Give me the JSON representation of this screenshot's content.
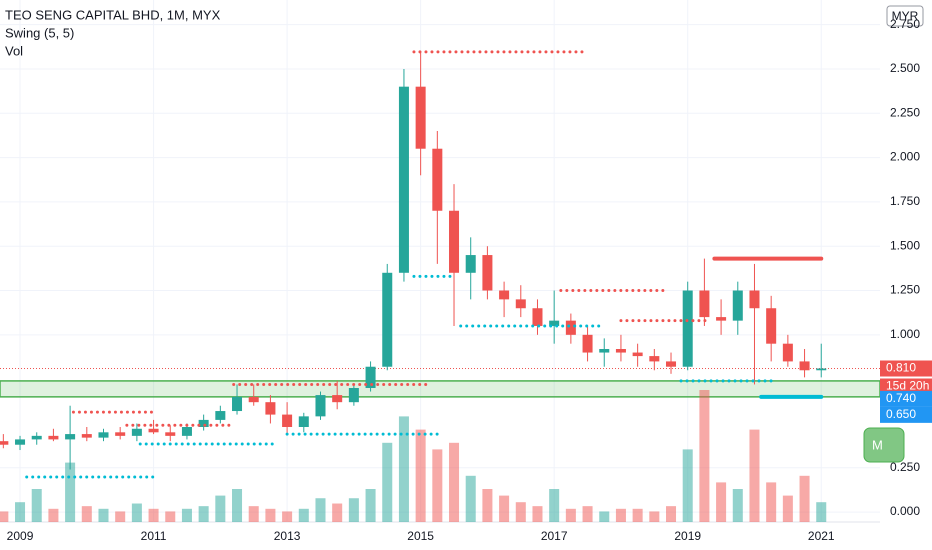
{
  "header": {
    "symbol": "TEO SENG CAPITAL BHD, 1M, MYX",
    "indicator": "Swing (5, 5)",
    "volume": "Vol"
  },
  "currency": "MYR",
  "side_button": "M",
  "chart_data": {
    "type": "candlestick",
    "up_color": "#26a69a",
    "down_color": "#ef5350",
    "xlim": [
      2008.7,
      2021.88
    ],
    "xticks": [
      2009,
      2011,
      2013,
      2015,
      2017,
      2019,
      2021
    ],
    "ylim": [
      -0.056,
      2.889
    ],
    "yticks": [
      {
        "value": 0,
        "label": "0.000"
      },
      {
        "value": 0.25,
        "label": "0.250"
      },
      {
        "value": 1,
        "label": "1.000"
      },
      {
        "value": 1.25,
        "label": "1.250"
      },
      {
        "value": 1.5,
        "label": "1.500"
      },
      {
        "value": 1.75,
        "label": "1.750"
      },
      {
        "value": 2,
        "label": "2.000"
      },
      {
        "value": 2.25,
        "label": "2.250"
      },
      {
        "value": 2.5,
        "label": "2.500"
      },
      {
        "value": 2.75,
        "label": "2.750"
      }
    ],
    "x": [
      2008.75,
      2009,
      2009.25,
      2009.5,
      2009.75,
      2010,
      2010.25,
      2010.5,
      2010.75,
      2011,
      2011.25,
      2011.5,
      2011.75,
      2012,
      2012.25,
      2012.5,
      2012.75,
      2013,
      2013.25,
      2013.5,
      2013.75,
      2014,
      2014.25,
      2014.5,
      2014.75,
      2015,
      2015.25,
      2015.5,
      2015.75,
      2016,
      2016.25,
      2016.5,
      2016.75,
      2017,
      2017.25,
      2017.5,
      2017.75,
      2018,
      2018.25,
      2018.5,
      2018.75,
      2019,
      2019.25,
      2019.5,
      2019.75,
      2020,
      2020.25,
      2020.5,
      2020.75,
      2021
    ],
    "open": [
      0.4,
      0.38,
      0.41,
      0.43,
      0.41,
      0.44,
      0.42,
      0.45,
      0.43,
      0.47,
      0.45,
      0.43,
      0.48,
      0.52,
      0.57,
      0.65,
      0.62,
      0.55,
      0.48,
      0.54,
      0.66,
      0.62,
      0.7,
      0.82,
      1.35,
      2.4,
      2.05,
      1.7,
      1.35,
      1.45,
      1.25,
      1.2,
      1.15,
      1.05,
      1.08,
      1.0,
      0.9,
      0.92,
      0.9,
      0.88,
      0.85,
      0.82,
      1.25,
      1.1,
      1.08,
      1.25,
      1.15,
      0.95,
      0.85,
      0.8
    ],
    "high": [
      0.44,
      0.43,
      0.45,
      0.47,
      0.6,
      0.48,
      0.47,
      0.48,
      0.5,
      0.52,
      0.49,
      0.5,
      0.55,
      0.6,
      0.72,
      0.72,
      0.66,
      0.62,
      0.56,
      0.68,
      0.74,
      0.72,
      0.85,
      1.4,
      2.5,
      2.6,
      2.15,
      1.85,
      1.55,
      1.5,
      1.3,
      1.28,
      1.2,
      1.25,
      1.12,
      1.05,
      0.98,
      1.0,
      0.95,
      0.92,
      0.9,
      1.3,
      1.43,
      1.2,
      1.3,
      1.4,
      1.22,
      1.0,
      0.92,
      0.95
    ],
    "low": [
      0.36,
      0.35,
      0.38,
      0.4,
      0.24,
      0.4,
      0.4,
      0.41,
      0.4,
      0.44,
      0.4,
      0.41,
      0.46,
      0.5,
      0.55,
      0.6,
      0.5,
      0.44,
      0.45,
      0.52,
      0.58,
      0.6,
      0.68,
      0.8,
      1.3,
      1.9,
      1.4,
      1.05,
      1.2,
      1.2,
      1.1,
      1.1,
      1.0,
      0.95,
      0.95,
      0.85,
      0.82,
      0.85,
      0.82,
      0.8,
      0.78,
      0.8,
      1.05,
      1.0,
      1.0,
      0.72,
      0.85,
      0.82,
      0.76,
      0.76
    ],
    "close": [
      0.38,
      0.41,
      0.43,
      0.41,
      0.44,
      0.42,
      0.45,
      0.43,
      0.47,
      0.45,
      0.43,
      0.48,
      0.52,
      0.57,
      0.65,
      0.62,
      0.55,
      0.48,
      0.54,
      0.66,
      0.62,
      0.7,
      0.82,
      1.35,
      2.4,
      2.05,
      1.7,
      1.35,
      1.45,
      1.25,
      1.2,
      1.15,
      1.05,
      1.08,
      1.0,
      0.9,
      0.92,
      0.9,
      0.88,
      0.85,
      0.82,
      1.25,
      1.1,
      1.08,
      1.25,
      1.15,
      0.95,
      0.85,
      0.8,
      0.81
    ],
    "volume": [
      8,
      15,
      25,
      10,
      45,
      12,
      10,
      8,
      14,
      10,
      8,
      10,
      12,
      20,
      25,
      12,
      10,
      8,
      10,
      18,
      14,
      18,
      25,
      60,
      80,
      70,
      55,
      60,
      35,
      25,
      20,
      15,
      12,
      25,
      10,
      12,
      8,
      10,
      10,
      8,
      12,
      55,
      100,
      30,
      25,
      70,
      30,
      20,
      35,
      15
    ],
    "vlim": [
      0,
      100
    ],
    "resistance": [
      {
        "start": 2009.8,
        "end": 2011.0,
        "value": 0.564
      },
      {
        "start": 2010.6,
        "end": 2012.2,
        "value": 0.49
      },
      {
        "start": 2012.2,
        "end": 2015.1,
        "value": 0.72
      },
      {
        "start": 2014.9,
        "end": 2017.5,
        "value": 2.596
      },
      {
        "start": 2017.1,
        "end": 2018.7,
        "value": 1.25
      },
      {
        "start": 2018.0,
        "end": 2019.3,
        "value": 1.08
      },
      {
        "start": 2019.4,
        "end": 2021.0,
        "value": 1.43,
        "thick": true
      }
    ],
    "support": [
      {
        "start": 2009.1,
        "end": 2011.0,
        "value": 0.198
      },
      {
        "start": 2010.8,
        "end": 2012.8,
        "value": 0.384
      },
      {
        "start": 2013.0,
        "end": 2015.3,
        "value": 0.44
      },
      {
        "start": 2014.9,
        "end": 2015.5,
        "value": 1.33
      },
      {
        "start": 2015.6,
        "end": 2017.7,
        "value": 1.05
      },
      {
        "start": 2018.9,
        "end": 2020.3,
        "value": 0.74
      },
      {
        "start": 2020.1,
        "end": 2021.0,
        "value": 0.65,
        "thick": true
      }
    ],
    "last_price": {
      "value": 0.81,
      "label": "0.810",
      "countdown": "15d 20h"
    },
    "zone": {
      "top": 0.74,
      "top_label": "0.740",
      "bottom": 0.65,
      "bottom_label": "0.650"
    }
  }
}
